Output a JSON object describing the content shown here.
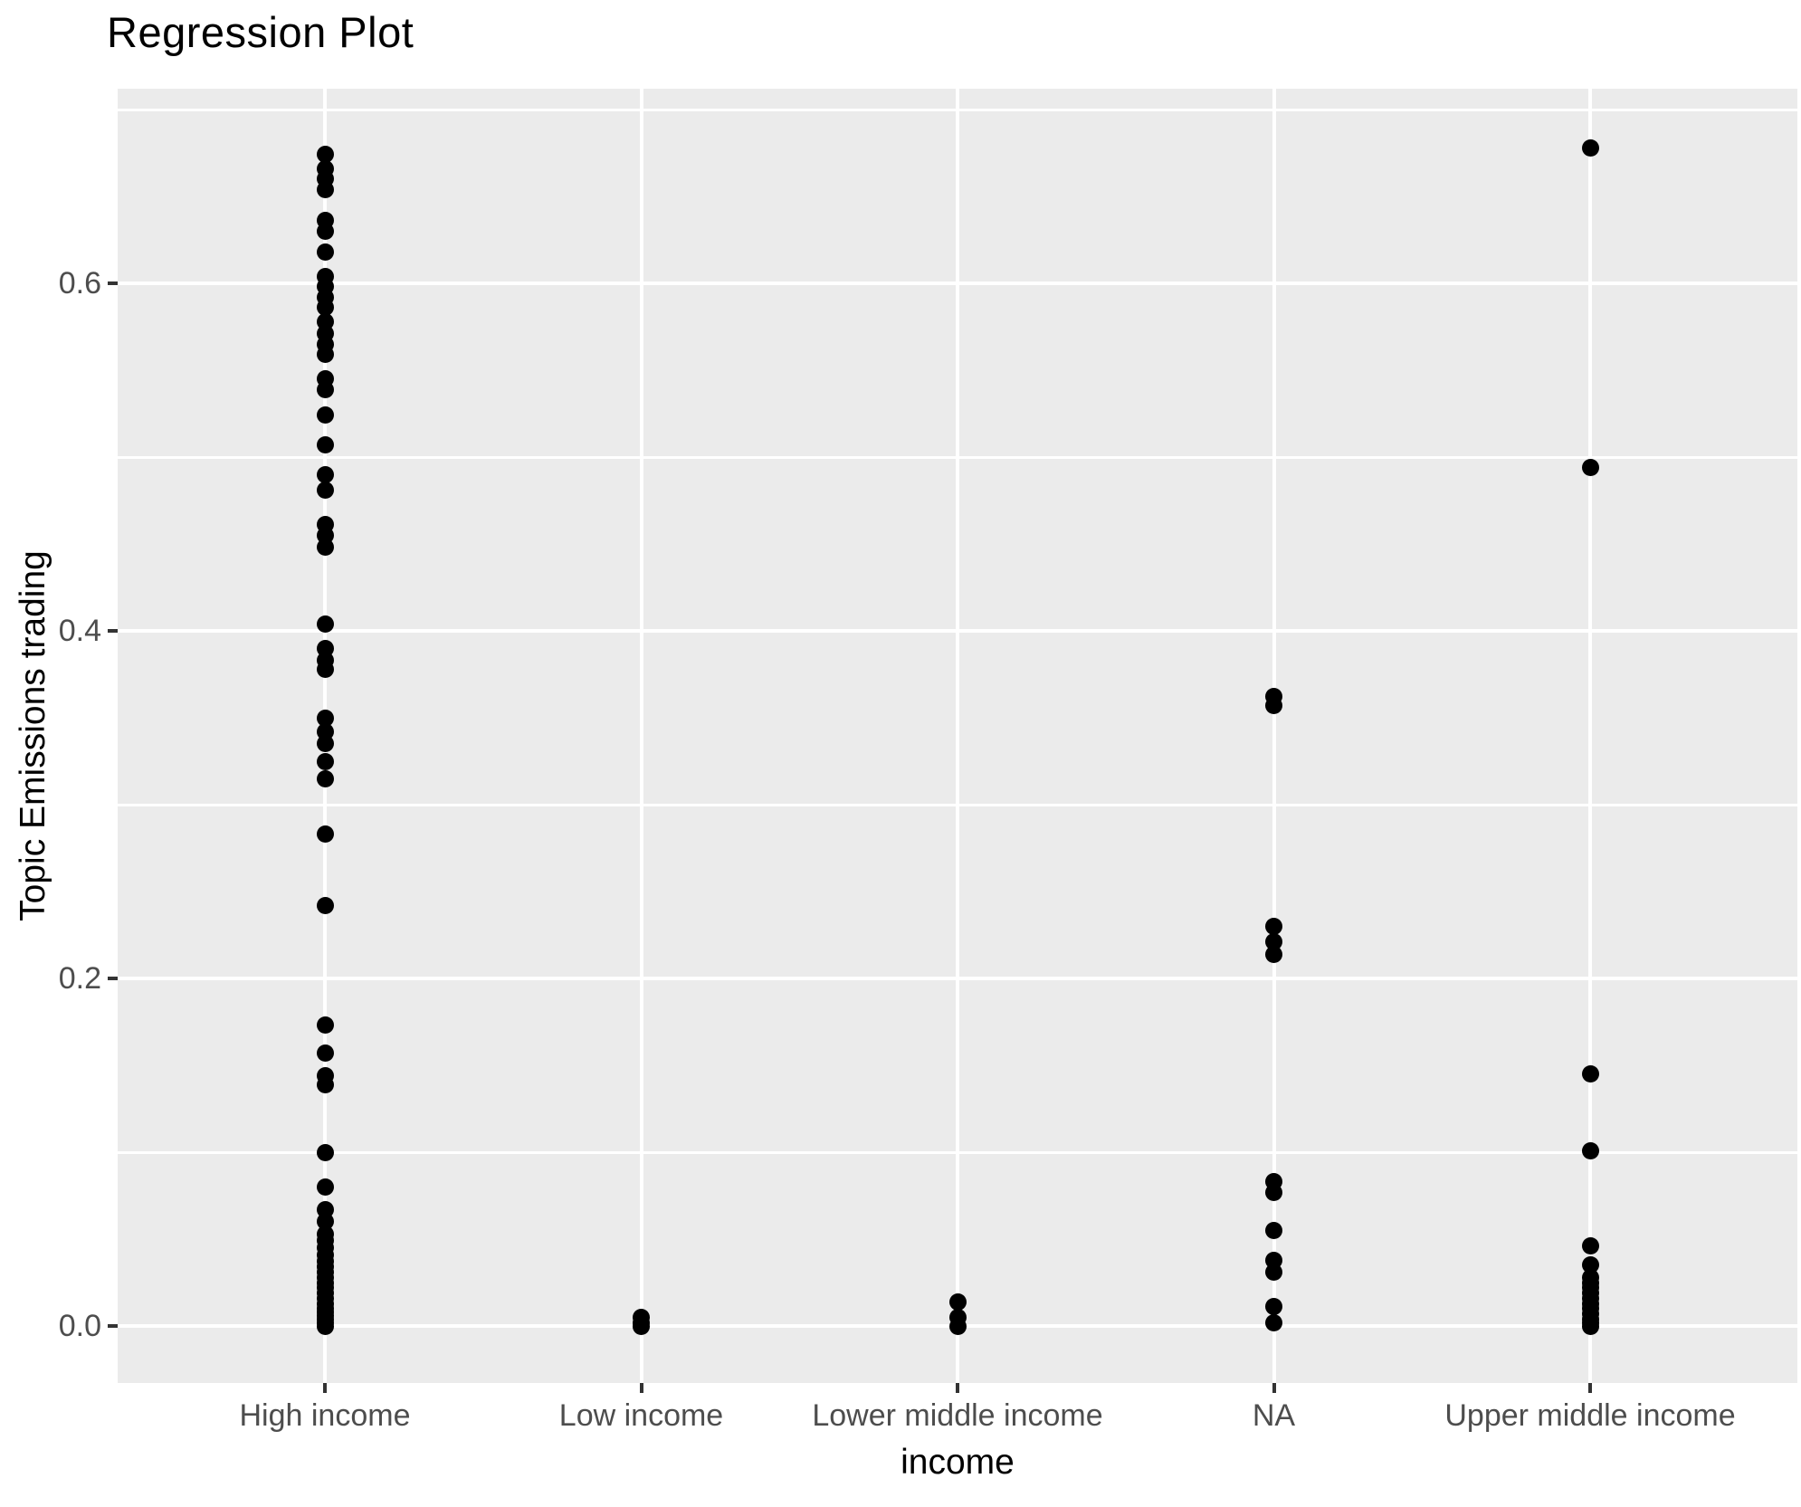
{
  "chart_data": {
    "type": "scatter",
    "title": "Regression Plot",
    "xlabel": "income",
    "ylabel": "Topic Emissions trading",
    "legend": false,
    "grid": true,
    "categories": [
      "High income",
      "Low income",
      "Lower middle income",
      "NA",
      "Upper middle income"
    ],
    "y_ticks": [
      0.0,
      0.2,
      0.4,
      0.6
    ],
    "y_tick_labels": [
      "0.0",
      "0.2",
      "0.4",
      "0.6"
    ],
    "y_minor_ticks": [
      0.1,
      0.3,
      0.5,
      0.7
    ],
    "ylim": [
      -0.033,
      0.712
    ],
    "series": [
      {
        "name": "High income",
        "values": [
          0.674,
          0.666,
          0.66,
          0.654,
          0.636,
          0.63,
          0.618,
          0.604,
          0.598,
          0.592,
          0.586,
          0.578,
          0.571,
          0.565,
          0.559,
          0.545,
          0.539,
          0.524,
          0.507,
          0.49,
          0.481,
          0.461,
          0.455,
          0.448,
          0.404,
          0.39,
          0.383,
          0.378,
          0.35,
          0.342,
          0.335,
          0.325,
          0.315,
          0.283,
          0.242,
          0.173,
          0.157,
          0.144,
          0.139,
          0.1,
          0.08,
          0.067,
          0.06,
          0.053,
          0.049,
          0.045,
          0.041,
          0.037,
          0.034,
          0.031,
          0.028,
          0.025,
          0.022,
          0.019,
          0.016,
          0.013,
          0.01,
          0.008,
          0.006,
          0.004,
          0.002,
          0.0
        ]
      },
      {
        "name": "Low income",
        "values": [
          0.005,
          0.002,
          0.0
        ]
      },
      {
        "name": "Lower middle income",
        "values": [
          0.014,
          0.005,
          0.0
        ]
      },
      {
        "name": "NA",
        "values": [
          0.362,
          0.357,
          0.23,
          0.221,
          0.214,
          0.083,
          0.077,
          0.055,
          0.038,
          0.031,
          0.011,
          0.002
        ]
      },
      {
        "name": "Upper middle income",
        "values": [
          0.678,
          0.494,
          0.145,
          0.101,
          0.046,
          0.035,
          0.028,
          0.025,
          0.022,
          0.019,
          0.016,
          0.013,
          0.01,
          0.007,
          0.004,
          0.002,
          0.0
        ]
      }
    ],
    "colors": {
      "panel_bg": "#ebebeb",
      "gridline": "#ffffff",
      "point": "#000000",
      "tick_label": "#4d4d4d",
      "tick_mark": "#333333",
      "title": "#000000",
      "axis_title": "#000000"
    }
  }
}
